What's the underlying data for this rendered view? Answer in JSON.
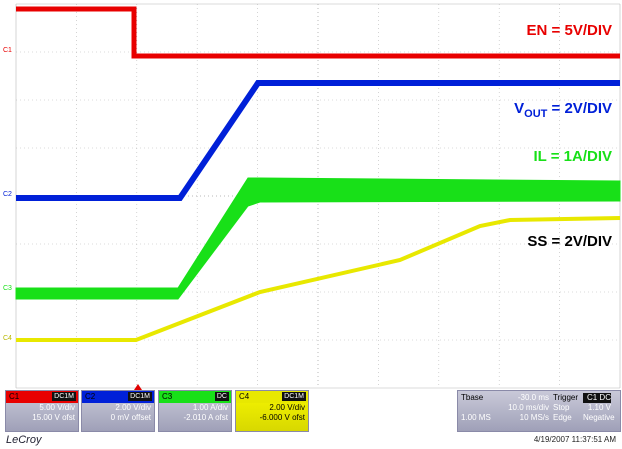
{
  "labels": {
    "en": "EN = 5V/DIV",
    "vout_main": "V",
    "vout_sub": "OUT",
    "vout_rest": " = 2V/DIV",
    "il": "IL = 1A/DIV",
    "ss": "SS = 2V/DIV"
  },
  "colors": {
    "c1": "#e80000",
    "c2": "#0020d8",
    "c3": "#18e018",
    "c4": "#e8e800",
    "grid": "#b8b8b8"
  },
  "channels": [
    {
      "id": "C1",
      "head": "C1",
      "badge": "DC1M",
      "line1": "5.00 V/div",
      "line2": "15.00 V ofst",
      "color": "#e80000"
    },
    {
      "id": "C2",
      "head": "C2",
      "badge": "DC1M",
      "line1": "2.00 V/div",
      "line2": "0 mV offset",
      "color": "#0020d8"
    },
    {
      "id": "C3",
      "head": "C3",
      "badge": "DC",
      "line1": "1.00 A/div",
      "line2": "-2.010 A ofst",
      "color": "#18e018"
    },
    {
      "id": "C4",
      "head": "C4",
      "badge": "DC1M",
      "line1": "2.00 V/div",
      "line2": "-6.000 V ofst",
      "color": "#e8e800"
    }
  ],
  "timebase": {
    "label": "Tbase",
    "value": "-30.0 ms",
    "per_div": "10.0 ms/div",
    "samples": "1.00 MS",
    "rate": "10 MS/s"
  },
  "trigger": {
    "label": "Trigger",
    "badge": "C1 DC",
    "mode": "Stop",
    "level": "1.10 V",
    "type": "Edge",
    "slope": "Negative"
  },
  "brand": "LeCroy",
  "datetime": "4/19/2007 11:37:51 AM"
}
